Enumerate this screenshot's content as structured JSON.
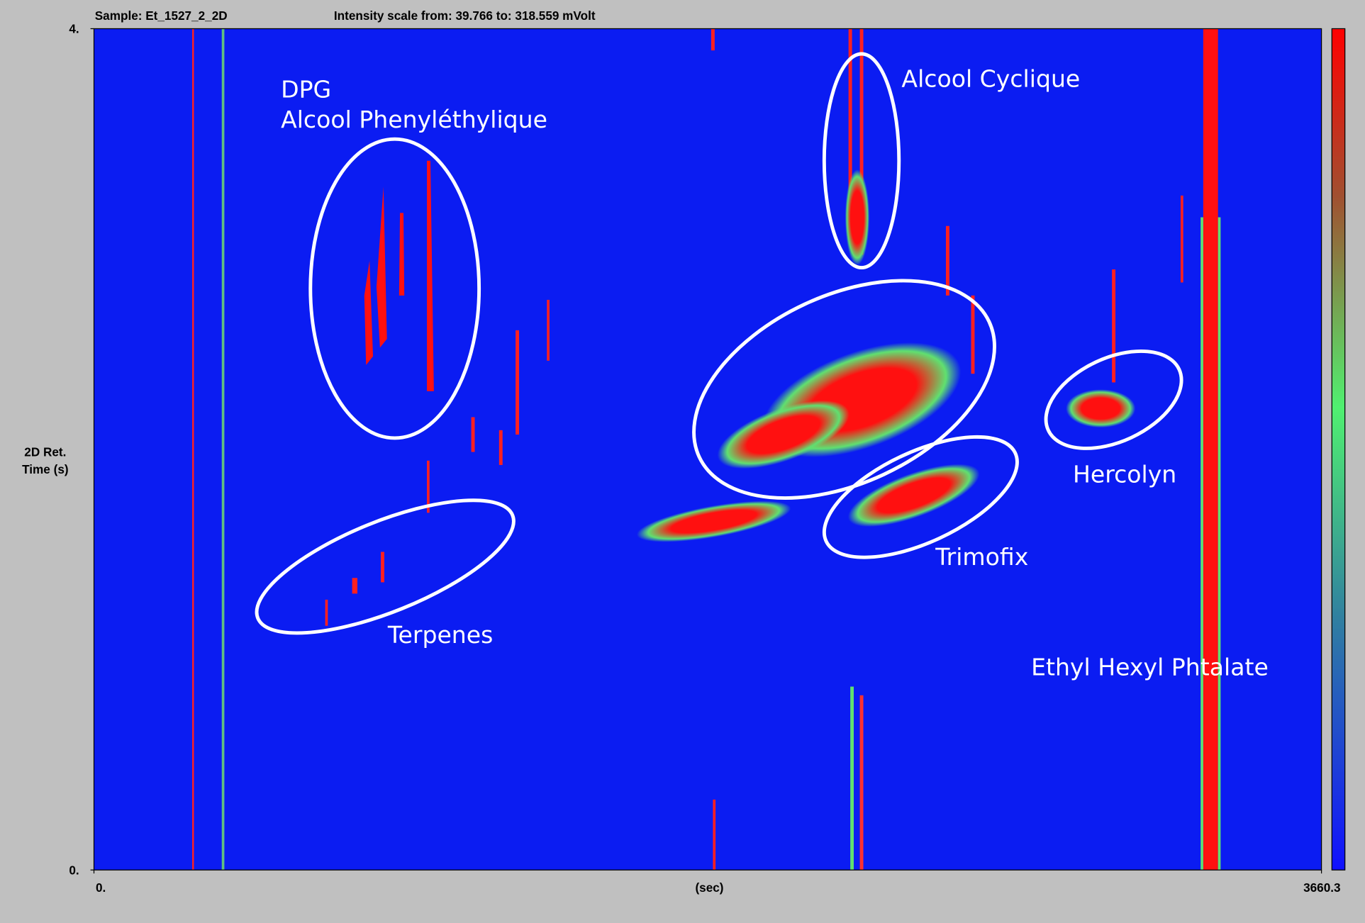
{
  "chart_data": {
    "type": "heatmap",
    "title": "Sample: Et_1527_2_2D",
    "subtitle": "Intensity scale from: 39.766 to: 318.559 mVolt",
    "xlabel": "(sec)",
    "ylabel": [
      "2D Ret.",
      "Time (s)"
    ],
    "xlim": [
      0,
      3660.3
    ],
    "ylim": [
      0,
      4
    ],
    "xticks": [
      {
        "value": 0,
        "label": "0."
      },
      3660.3
    ],
    "yticks": [
      {
        "value": 0,
        "label": "0."
      },
      {
        "value": 4,
        "label": "4."
      }
    ],
    "annotations": [
      "DPG",
      "Alcool Phenyléthylique",
      "Alcool Cyclique",
      "Terpenes",
      "Trimofix",
      "Hercolyn",
      "Ethyl Hexyl Phtalate"
    ]
  }
}
